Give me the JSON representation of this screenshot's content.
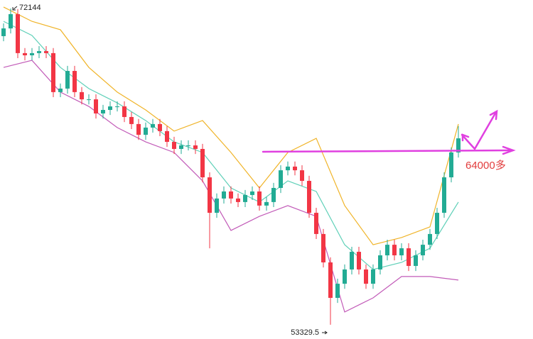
{
  "chart_data": {
    "type": "candlestick",
    "ylim": [
      52483,
      72650
    ],
    "up_color": "#22ab94",
    "down_color": "#f23645",
    "open": [
      70500,
      70960,
      71810,
      69490,
      69360,
      69490,
      69610,
      69490,
      67170,
      67380,
      68430,
      67170,
      66740,
      66740,
      65900,
      66110,
      66320,
      66320,
      65690,
      65270,
      64630,
      65060,
      65270,
      64850,
      64210,
      63790,
      64000,
      64000,
      63790,
      62100,
      59990,
      60840,
      61260,
      60840,
      60630,
      61050,
      61260,
      60420,
      60630,
      61470,
      62520,
      62740,
      62520,
      61890,
      59990,
      58730,
      57040,
      54930,
      55770,
      56620,
      57670,
      56620,
      55770,
      56620,
      57460,
      58090,
      57460,
      57880,
      56830,
      57460,
      58090,
      58730,
      59990,
      62100,
      63580
    ],
    "high": [
      71260,
      72144,
      72110,
      69790,
      69790,
      69910,
      69910,
      69790,
      67680,
      68730,
      68730,
      67470,
      67040,
      67040,
      66410,
      66620,
      66620,
      66620,
      65990,
      65570,
      65360,
      65570,
      65570,
      65150,
      64510,
      64300,
      64300,
      64300,
      64090,
      62400,
      61140,
      61560,
      61560,
      61140,
      61350,
      61560,
      61560,
      60930,
      61770,
      62820,
      63040,
      63040,
      62820,
      62190,
      60290,
      59030,
      57340,
      56070,
      56920,
      57970,
      57970,
      56920,
      56920,
      57760,
      58390,
      58390,
      58180,
      58180,
      57760,
      58390,
      59030,
      60290,
      62400,
      63880,
      65150
    ],
    "low": [
      70200,
      70660,
      69190,
      69060,
      69060,
      69190,
      69190,
      66870,
      66870,
      67080,
      66870,
      66440,
      66440,
      65600,
      65600,
      65810,
      66020,
      65390,
      64970,
      64330,
      64330,
      64760,
      64550,
      63910,
      63490,
      63490,
      63700,
      63490,
      61800,
      57880,
      59690,
      60540,
      60540,
      60330,
      60330,
      60750,
      60120,
      60120,
      60330,
      61170,
      62220,
      62220,
      61590,
      59690,
      58430,
      56740,
      53329.5,
      54630,
      55470,
      56320,
      56320,
      55470,
      55470,
      56320,
      57160,
      57160,
      57160,
      56530,
      56530,
      57160,
      57790,
      58430,
      59690,
      61800,
      63280
    ],
    "close": [
      70960,
      71810,
      69490,
      69360,
      69490,
      69610,
      69490,
      67170,
      67380,
      68430,
      67170,
      66740,
      66740,
      65900,
      66110,
      66320,
      66320,
      65690,
      65270,
      64630,
      65060,
      65270,
      64850,
      64210,
      63790,
      64000,
      64000,
      63790,
      62100,
      59990,
      60840,
      61260,
      60840,
      60630,
      61050,
      61260,
      60420,
      60630,
      61470,
      62520,
      62740,
      62520,
      61890,
      59990,
      58730,
      57040,
      54930,
      55770,
      56620,
      57670,
      56620,
      55770,
      56620,
      57460,
      58090,
      57460,
      57880,
      56830,
      57460,
      58090,
      58730,
      59990,
      62100,
      63580,
      64420
    ],
    "bands": [
      {
        "color": "#f0b429",
        "x": [
          0,
          4,
          8,
          12,
          16,
          20,
          24,
          28,
          32,
          36,
          40,
          44,
          48,
          52,
          56,
          60,
          64
        ],
        "values": [
          72230,
          71380,
          70880,
          68640,
          67170,
          66110,
          64850,
          65480,
          63580,
          61470,
          63580,
          64420,
          60420,
          58090,
          58520,
          59150,
          65270
        ]
      },
      {
        "color": "#5fd0b8",
        "x": [
          0,
          4,
          8,
          12,
          16,
          20,
          24,
          28,
          32,
          36,
          40,
          44,
          48,
          52,
          56,
          60,
          64
        ],
        "values": [
          71380,
          70540,
          68640,
          67380,
          66530,
          65480,
          64210,
          63580,
          61470,
          60630,
          61890,
          61260,
          58090,
          56620,
          57040,
          57880,
          60630
        ]
      },
      {
        "color": "#c25bb8",
        "x": [
          0,
          4,
          8,
          12,
          16,
          20,
          24,
          28,
          32,
          36,
          40,
          44,
          48,
          52,
          56,
          60,
          64
        ],
        "values": [
          68640,
          69060,
          67170,
          66320,
          65060,
          64210,
          63580,
          61890,
          58940,
          59780,
          60420,
          59780,
          54090,
          54930,
          56200,
          56200,
          55990
        ]
      }
    ],
    "annotation": "64000多"
  }
}
